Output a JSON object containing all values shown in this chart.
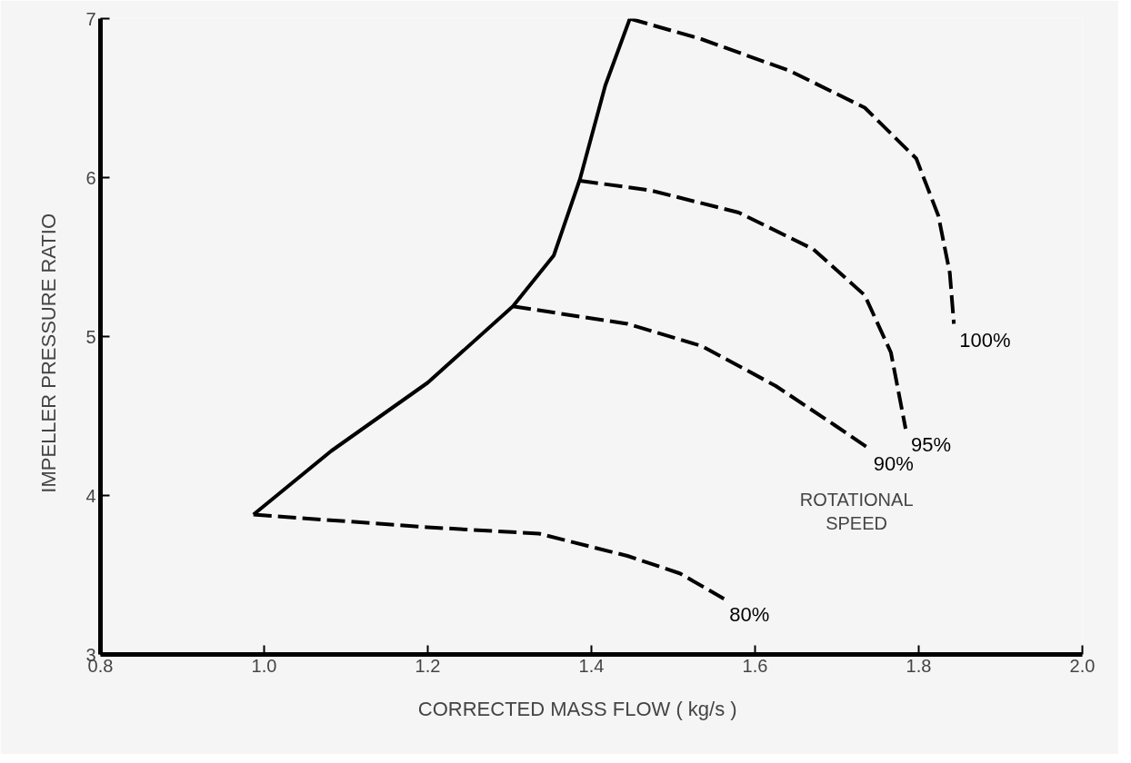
{
  "chart_data": {
    "type": "line",
    "xlabel": "CORRECTED   MASS   FLOW  ( kg/s )",
    "ylabel": "IMPELLER    PRESSURE    RATIO",
    "xlim": [
      0.8,
      2.0
    ],
    "ylim": [
      3,
      7
    ],
    "xticks": [
      0.8,
      {
        "value": 1.0,
        "label": "1.0"
      },
      1.2,
      1.4,
      1.6,
      1.8,
      {
        "value": 2.0,
        "label": "2.0"
      }
    ],
    "yticks": [
      3,
      4,
      5,
      6,
      7
    ],
    "grid": false,
    "marker": "none",
    "annotations": [
      "ROTATIONAL\nSPEED"
    ],
    "series": [
      {
        "color": "#000000",
        "line_style": "solid",
        "x": [
          0.987,
          1.082,
          1.2,
          1.304,
          1.354,
          1.386,
          1.417,
          1.447
        ],
        "values": [
          3.88,
          4.28,
          4.71,
          5.19,
          5.51,
          5.99,
          6.58,
          7.0
        ]
      },
      {
        "name": "80%",
        "color": "#000000",
        "line_style": "dashed",
        "x": [
          0.987,
          1.2,
          1.336,
          1.444,
          1.508,
          1.562
        ],
        "values": [
          3.88,
          3.8,
          3.76,
          3.62,
          3.51,
          3.35
        ]
      },
      {
        "name": "90%",
        "color": "#000000",
        "line_style": "dashed",
        "x": [
          1.304,
          1.444,
          1.535,
          1.625,
          1.698,
          1.738
        ],
        "values": [
          5.19,
          5.08,
          4.94,
          4.69,
          4.44,
          4.3
        ]
      },
      {
        "name": "95%",
        "color": "#000000",
        "line_style": "dashed",
        "x": [
          1.386,
          1.472,
          1.58,
          1.671,
          1.734,
          1.766,
          1.784
        ],
        "values": [
          5.98,
          5.92,
          5.78,
          5.55,
          5.26,
          4.9,
          4.42
        ]
      },
      {
        "name": "100%",
        "color": "#000000",
        "line_style": "dashed",
        "x": [
          1.447,
          1.535,
          1.643,
          1.734,
          1.797,
          1.824,
          1.838,
          1.843
        ],
        "values": [
          7.0,
          6.87,
          6.67,
          6.44,
          6.12,
          5.76,
          5.4,
          5.08
        ]
      }
    ]
  }
}
